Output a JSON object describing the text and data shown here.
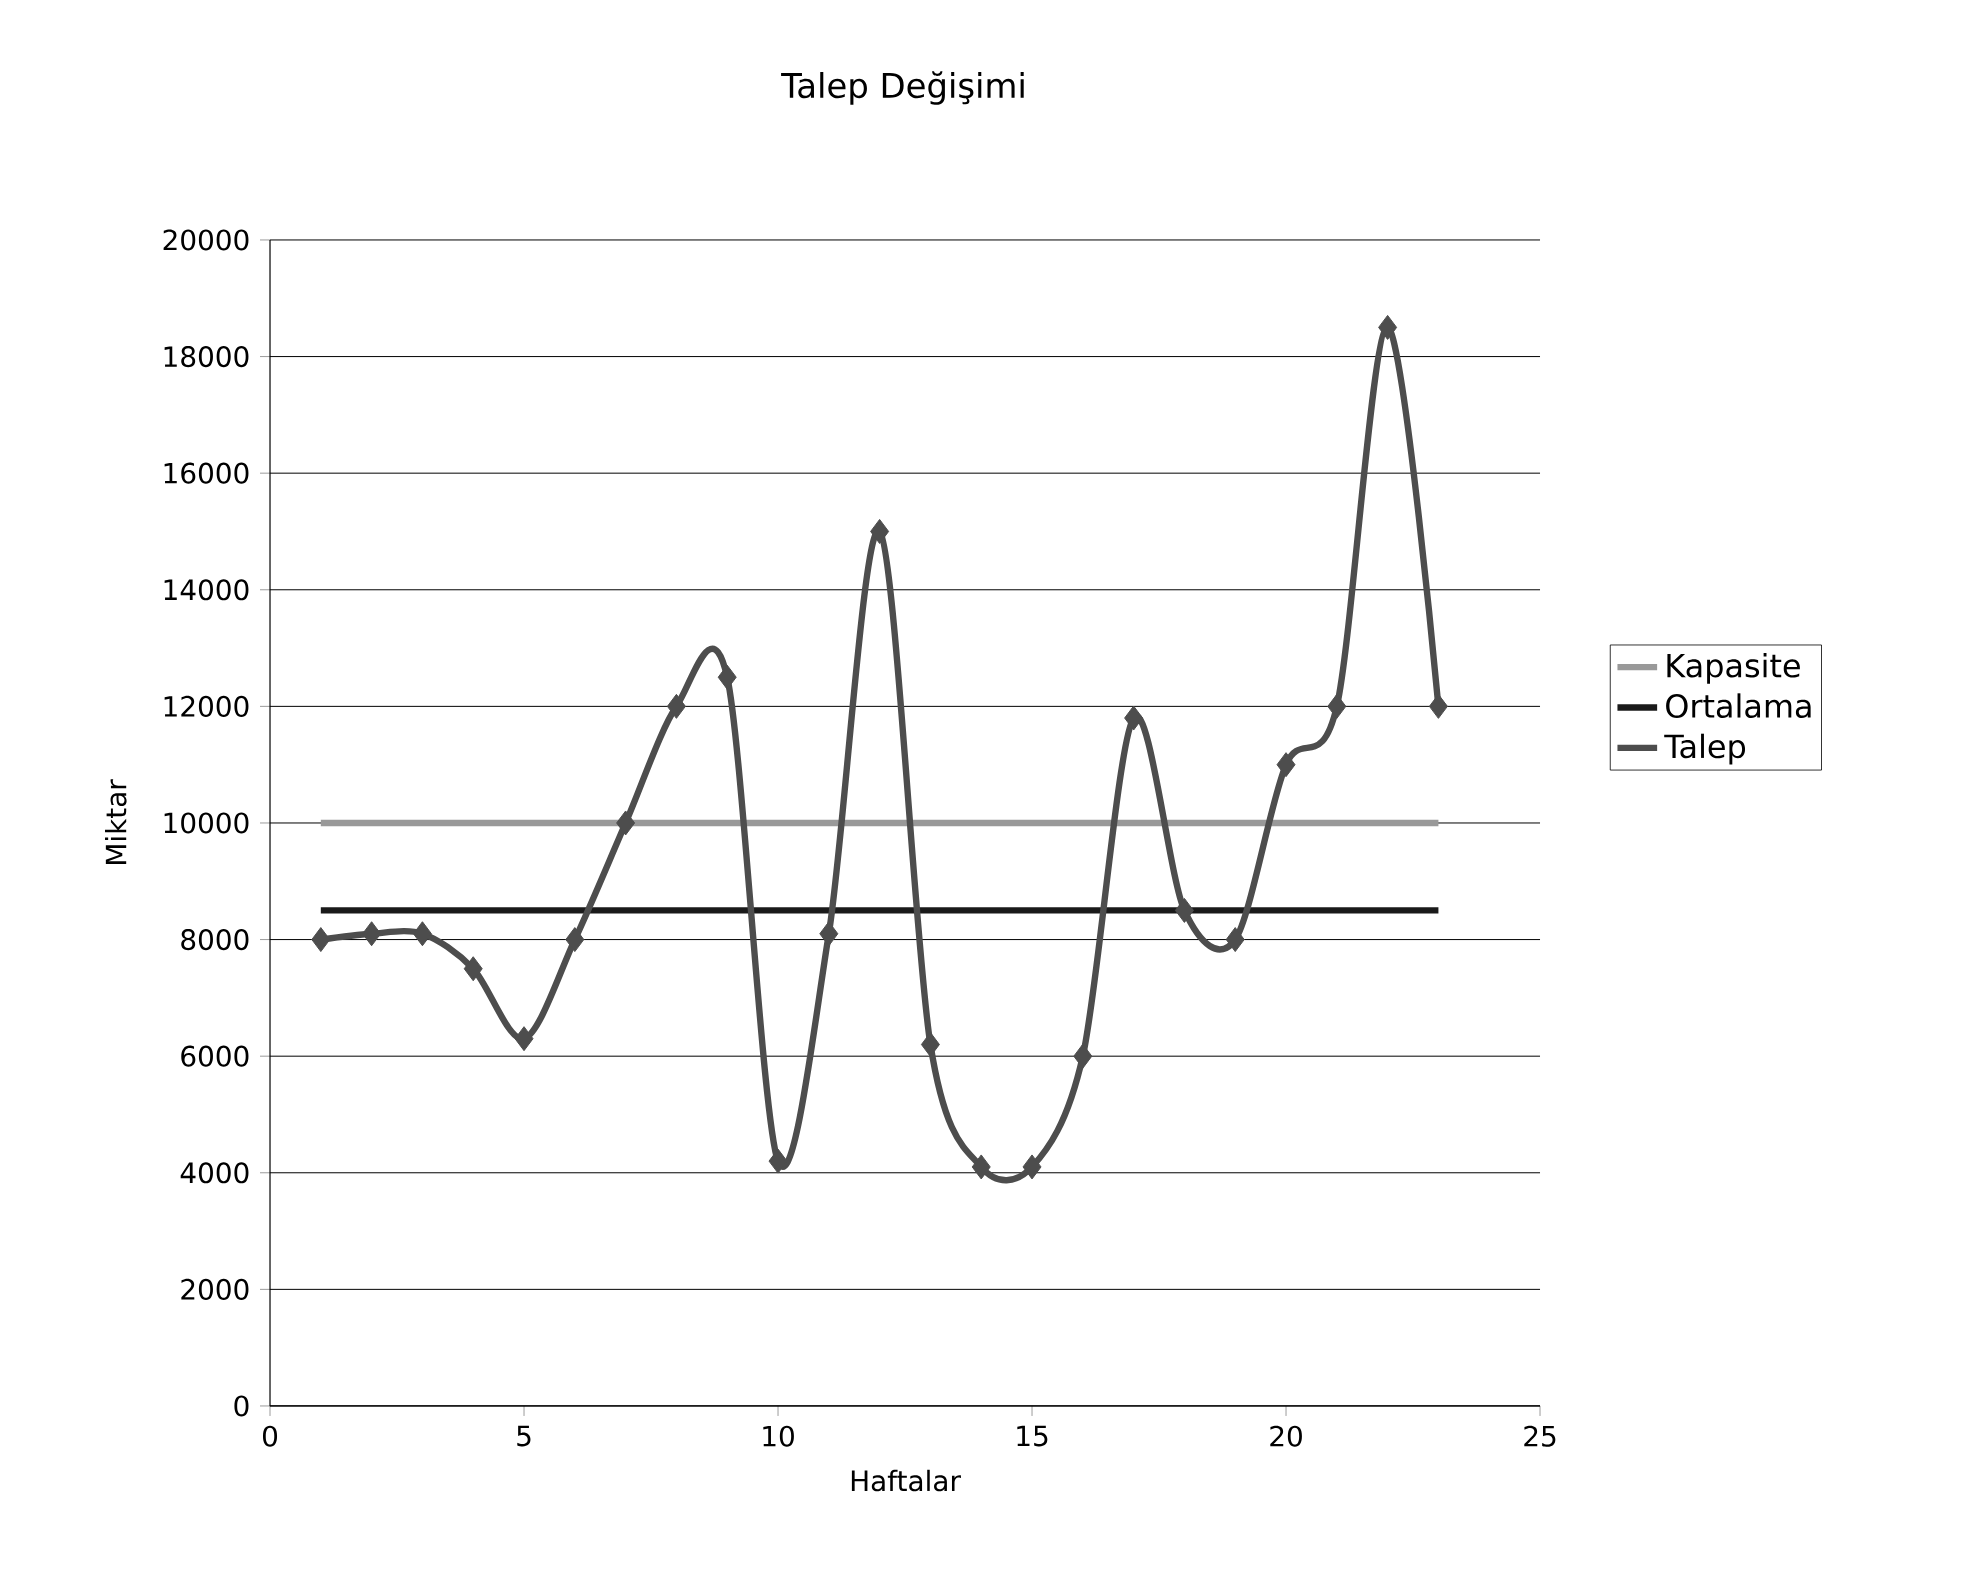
{
  "chart_data": {
    "type": "line",
    "title": "Talep Değişimi",
    "xlabel": "Haftalar",
    "ylabel": "Miktar",
    "xlim": [
      0,
      25
    ],
    "xticks": [
      0,
      5,
      10,
      15,
      20,
      25
    ],
    "ylim": [
      0,
      20000
    ],
    "yticks": [
      0,
      2000,
      4000,
      6000,
      8000,
      10000,
      12000,
      14000,
      16000,
      18000,
      20000
    ],
    "grid": "y",
    "legend": "right",
    "series": [
      {
        "name": "Kapasite",
        "color": "#999999",
        "marker": "none",
        "x": [
          1,
          23
        ],
        "values": [
          10000,
          10000
        ]
      },
      {
        "name": "Ortalama",
        "color": "#1a1a1a",
        "marker": "none",
        "x": [
          1,
          23
        ],
        "values": [
          8500,
          8500
        ]
      },
      {
        "name": "Talep",
        "color": "#4d4d4d",
        "marker": "diamond",
        "x": [
          1,
          2,
          3,
          4,
          5,
          6,
          7,
          8,
          9,
          10,
          11,
          12,
          13,
          14,
          15,
          16,
          17,
          18,
          19,
          20,
          21,
          22,
          23
        ],
        "values": [
          8000,
          8100,
          8100,
          7500,
          6300,
          8000,
          10000,
          12000,
          12500,
          4200,
          8100,
          15000,
          6200,
          4100,
          4100,
          6000,
          11800,
          8500,
          8000,
          11000,
          12000,
          18500,
          12000
        ]
      }
    ]
  }
}
